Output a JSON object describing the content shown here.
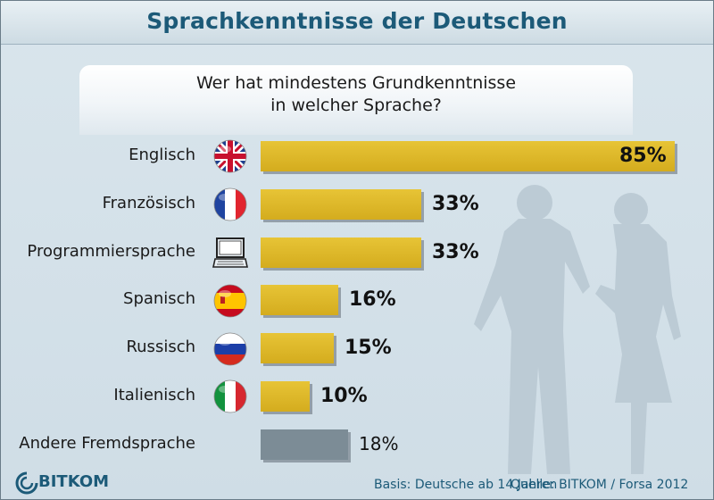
{
  "title": "Sprachkenntnisse der Deutschen",
  "subtitle": "Wer hat mindestens Grundkenntnisse\nin welcher Sprache?",
  "chart_data": {
    "type": "bar",
    "orientation": "horizontal",
    "categories": [
      "Englisch",
      "Französisch",
      "Programmiersprache",
      "Spanisch",
      "Russisch",
      "Italienisch",
      "Andere Fremdsprache"
    ],
    "values": [
      85,
      33,
      33,
      16,
      15,
      10,
      18
    ],
    "value_labels": [
      "85%",
      "33%",
      "33%",
      "16%",
      "15%",
      "10%",
      "18%"
    ],
    "unit": "%",
    "xlim": [
      0,
      85
    ],
    "grid": false,
    "colors": {
      "main": "#dbb42a",
      "other": "#7c8c96"
    }
  },
  "icons": [
    "uk-flag-icon",
    "france-flag-icon",
    "laptop-icon",
    "spain-flag-icon",
    "russia-flag-icon",
    "italy-flag-icon"
  ],
  "footer": {
    "logo": "BITKOM",
    "basis": "Basis: Deutsche ab 14 Jahren",
    "source": "Quelle: BITKOM / Forsa 2012"
  },
  "colors": {
    "title": "#1c5a78",
    "background": "#d3e0e8"
  }
}
